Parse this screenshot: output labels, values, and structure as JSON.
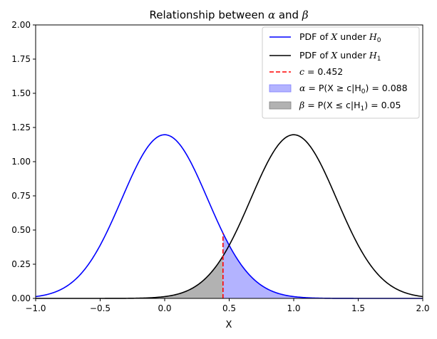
{
  "chart_data": {
    "type": "line",
    "title": "Relationship between α and β",
    "xlabel": "X",
    "ylabel": "",
    "xlim": [
      -1.0,
      2.0
    ],
    "ylim": [
      0.0,
      2.0
    ],
    "grid": false,
    "legend_position": "top-right",
    "x_ticks": [
      -1.0,
      -0.5,
      0.0,
      0.5,
      1.0,
      1.5,
      2.0
    ],
    "x_tick_labels": [
      "−1.0",
      "−0.5",
      "0.0",
      "0.5",
      "1.0",
      "1.5",
      "2.0"
    ],
    "y_ticks": [
      0.0,
      0.25,
      0.5,
      0.75,
      1.0,
      1.25,
      1.5,
      1.75,
      2.0
    ],
    "y_tick_labels": [
      "0.00",
      "0.25",
      "0.50",
      "0.75",
      "1.00",
      "1.25",
      "1.50",
      "1.75",
      "2.00"
    ],
    "series": [
      {
        "name": "PDF of X under H0",
        "kind": "normal_pdf",
        "mean": 0.0,
        "std": 0.3333,
        "color": "#0000ff",
        "legend": {
          "text": "PDF of ",
          "var": "X",
          "mid": " under ",
          "hyp": "H",
          "sub": "0"
        }
      },
      {
        "name": "PDF of X under H1",
        "kind": "normal_pdf",
        "mean": 1.0,
        "std": 0.3333,
        "color": "#000000",
        "legend": {
          "text": "PDF of ",
          "var": "X",
          "mid": " under ",
          "hyp": "H",
          "sub": "1"
        }
      }
    ],
    "threshold": {
      "c": 0.452,
      "color": "#ff0000",
      "legend": {
        "var": "c",
        "text": " = 0.452"
      }
    },
    "alpha_region": {
      "value": 0.088,
      "color": "#b3b3ff",
      "edge_color": "#8080ff",
      "legend": {
        "greek": "α",
        "text": " = P(X ≥ c|H",
        "sub": "0",
        "tail": ") = 0.088"
      }
    },
    "beta_region": {
      "value": 0.05,
      "color": "#b2b2b2",
      "edge_color": "#808080",
      "legend": {
        "greek": "β",
        "text": " = P(X ≤ c|H",
        "sub": "1",
        "tail": ") = 0.05"
      }
    }
  }
}
